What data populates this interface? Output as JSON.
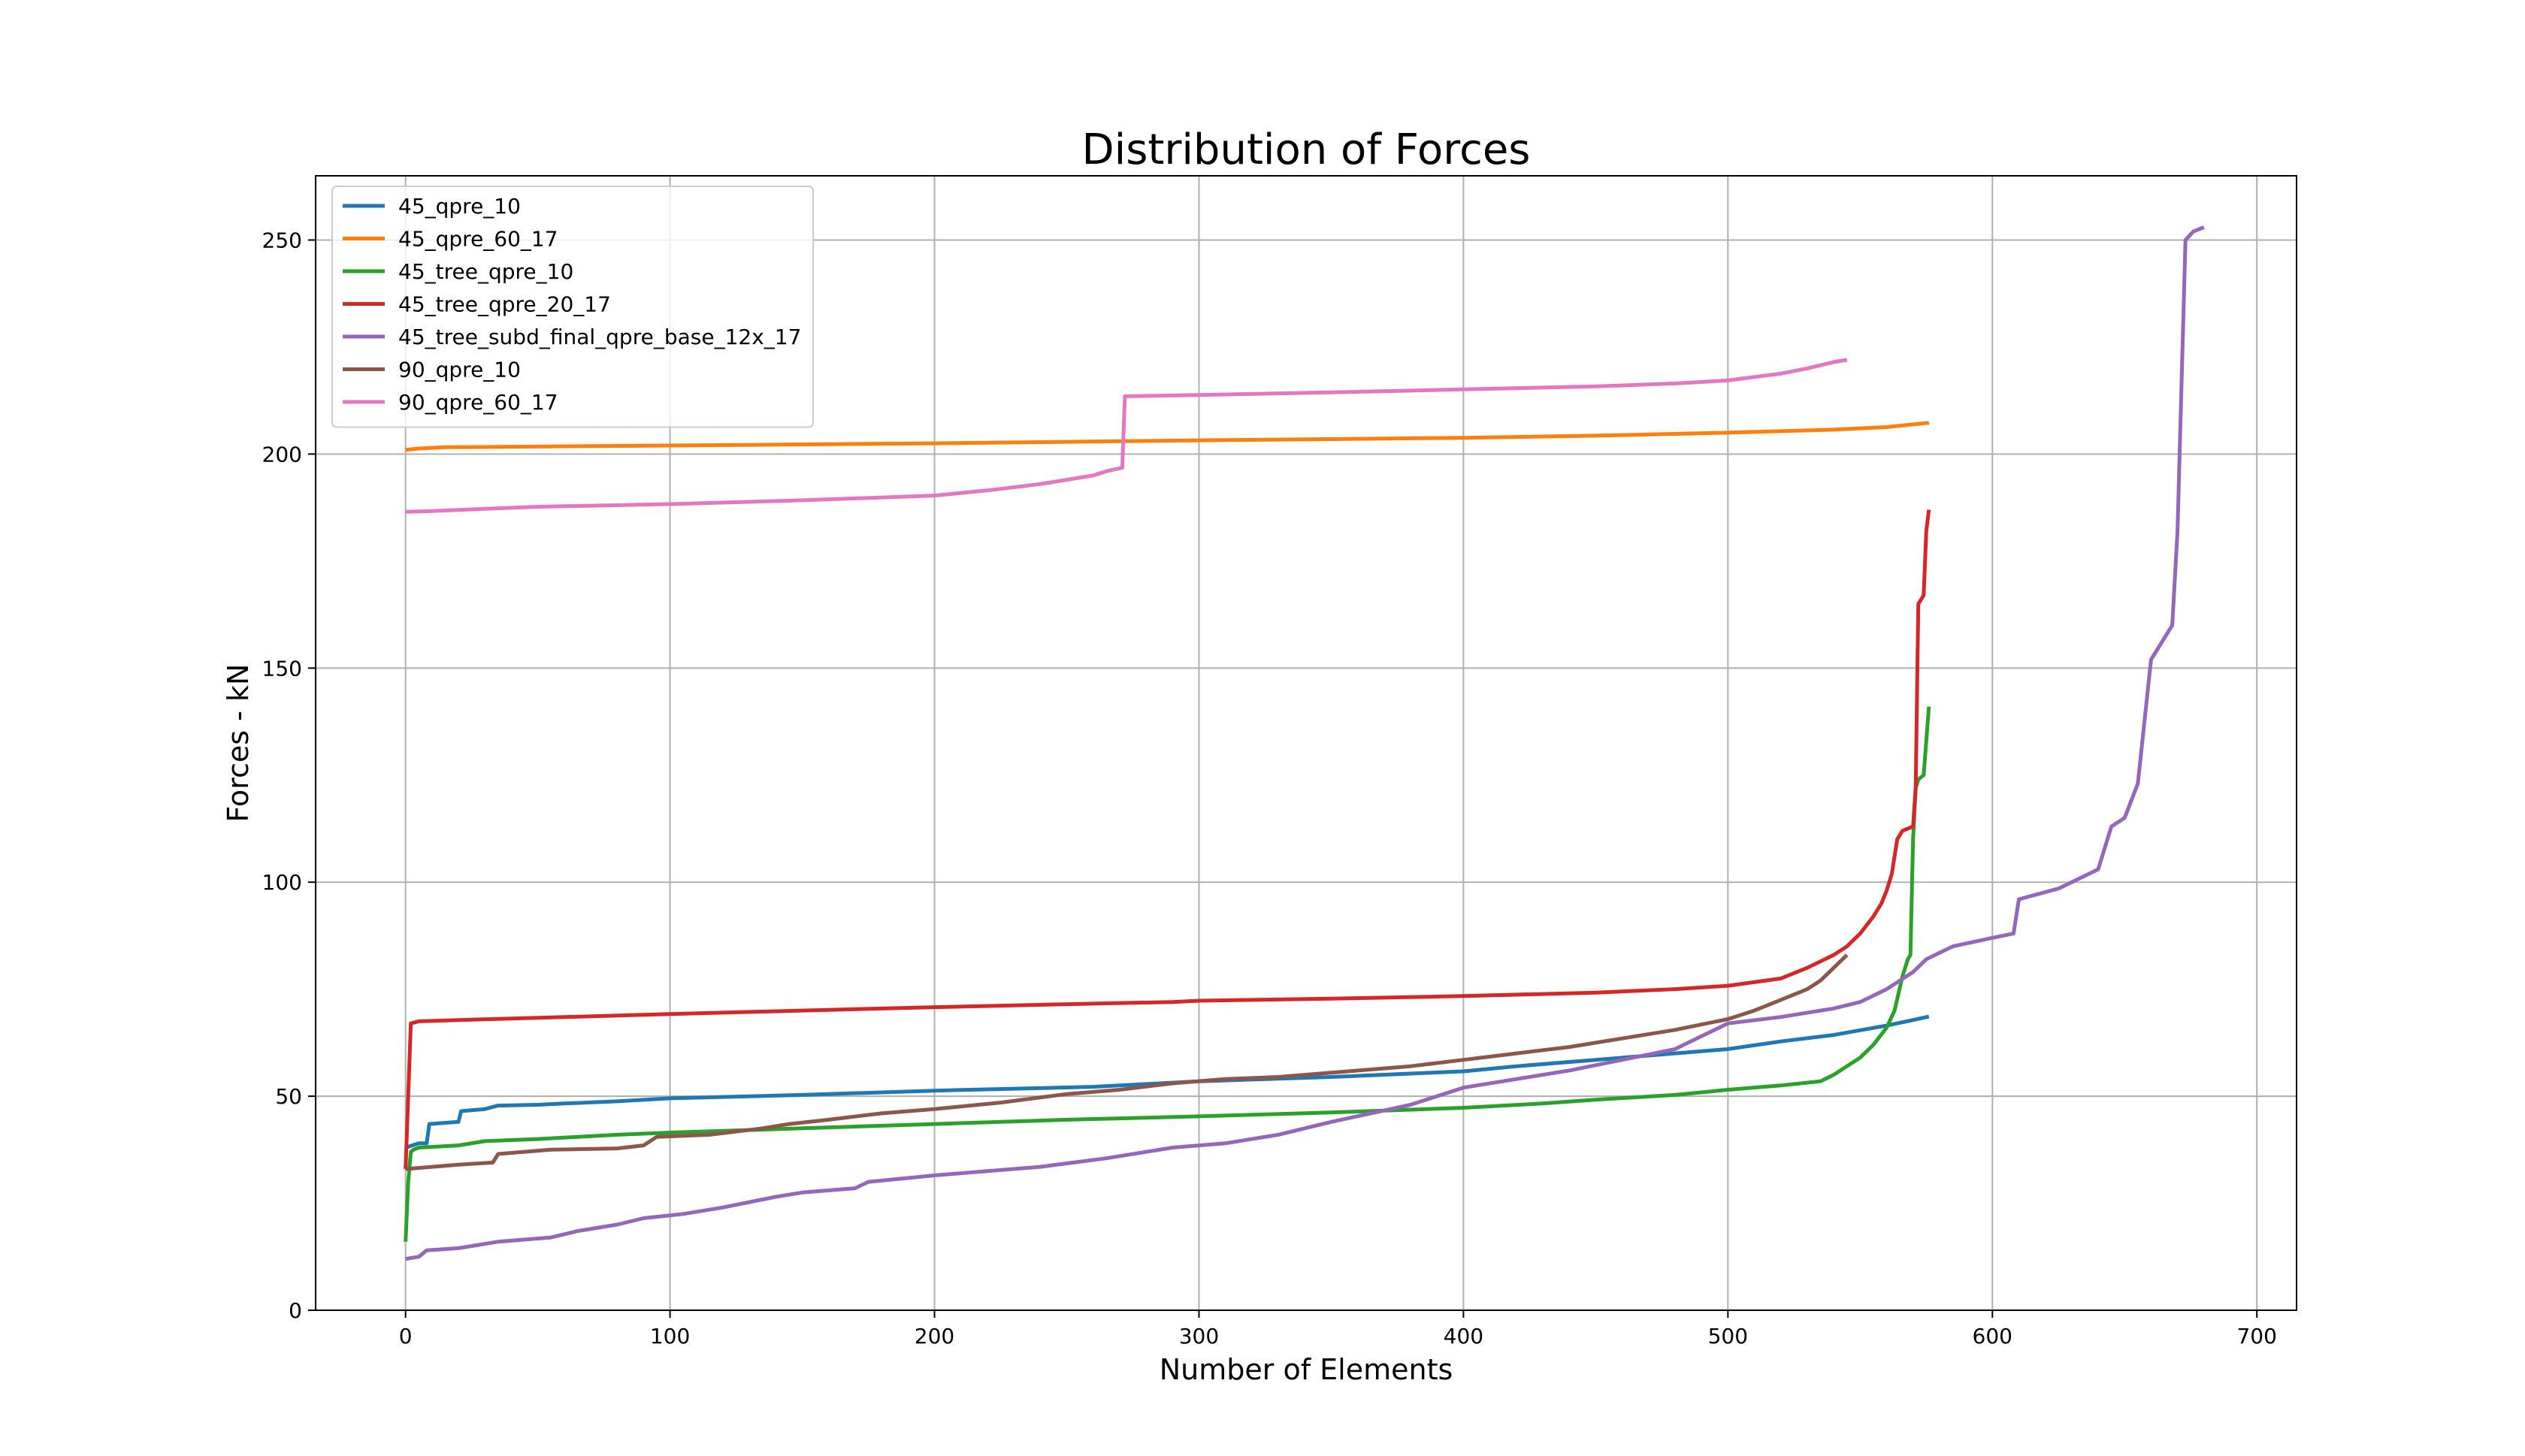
{
  "chart_data": {
    "type": "line",
    "title": "Distribution of Forces",
    "xlabel": "Number of Elements",
    "ylabel": "Forces - kN",
    "xlim": [
      -34,
      715
    ],
    "ylim": [
      0,
      265
    ],
    "xticks": [
      0,
      100,
      200,
      300,
      400,
      500,
      600,
      700
    ],
    "yticks": [
      0,
      50,
      100,
      150,
      200,
      250
    ],
    "grid": true,
    "legend_position": "upper-left",
    "series": [
      {
        "name": "45_qpre_10",
        "color": "#1f77b4",
        "points": [
          [
            0,
            38
          ],
          [
            5,
            39
          ],
          [
            8,
            39
          ],
          [
            9,
            43.5
          ],
          [
            20,
            44
          ],
          [
            21,
            46.5
          ],
          [
            30,
            47
          ],
          [
            35,
            47.8
          ],
          [
            50,
            48
          ],
          [
            60,
            48.3
          ],
          [
            80,
            48.8
          ],
          [
            100,
            49.5
          ],
          [
            150,
            50.3
          ],
          [
            200,
            51.3
          ],
          [
            260,
            52.2
          ],
          [
            300,
            53.5
          ],
          [
            350,
            54.5
          ],
          [
            400,
            55.8
          ],
          [
            420,
            57
          ],
          [
            450,
            58.5
          ],
          [
            480,
            60
          ],
          [
            500,
            61
          ],
          [
            520,
            62.8
          ],
          [
            540,
            64.3
          ],
          [
            560,
            66.5
          ],
          [
            570,
            67.8
          ],
          [
            576,
            68.6
          ]
        ]
      },
      {
        "name": "45_qpre_60_17",
        "color": "#ff7f0e",
        "points": [
          [
            0,
            201
          ],
          [
            5,
            201.3
          ],
          [
            15,
            201.6
          ],
          [
            100,
            202
          ],
          [
            200,
            202.5
          ],
          [
            300,
            203.2
          ],
          [
            400,
            203.8
          ],
          [
            450,
            204.3
          ],
          [
            500,
            205
          ],
          [
            540,
            205.7
          ],
          [
            560,
            206.3
          ],
          [
            576,
            207.3
          ]
        ]
      },
      {
        "name": "45_tree_qpre_10",
        "color": "#2ca02c",
        "points": [
          [
            0,
            16
          ],
          [
            1,
            30
          ],
          [
            2,
            37
          ],
          [
            3,
            37.5
          ],
          [
            5,
            38
          ],
          [
            20,
            38.5
          ],
          [
            30,
            39.5
          ],
          [
            50,
            40
          ],
          [
            80,
            41
          ],
          [
            100,
            41.5
          ],
          [
            150,
            42.5
          ],
          [
            200,
            43.5
          ],
          [
            250,
            44.5
          ],
          [
            300,
            45.3
          ],
          [
            350,
            46.2
          ],
          [
            400,
            47.3
          ],
          [
            430,
            48.3
          ],
          [
            450,
            49.2
          ],
          [
            480,
            50.3
          ],
          [
            500,
            51.5
          ],
          [
            520,
            52.5
          ],
          [
            535,
            53.5
          ],
          [
            540,
            55
          ],
          [
            545,
            57
          ],
          [
            550,
            59
          ],
          [
            555,
            62
          ],
          [
            560,
            66
          ],
          [
            563,
            70
          ],
          [
            566,
            78
          ],
          [
            568,
            82
          ],
          [
            569,
            83
          ],
          [
            570,
            110
          ],
          [
            571,
            122
          ],
          [
            572,
            124
          ],
          [
            574,
            125
          ],
          [
            576,
            141
          ]
        ]
      },
      {
        "name": "45_tree_qpre_20_17",
        "color": "#d62728",
        "points": [
          [
            0,
            33
          ],
          [
            2,
            67
          ],
          [
            5,
            67.5
          ],
          [
            20,
            67.8
          ],
          [
            50,
            68.3
          ],
          [
            100,
            69.2
          ],
          [
            150,
            70
          ],
          [
            200,
            70.8
          ],
          [
            250,
            71.5
          ],
          [
            290,
            72
          ],
          [
            300,
            72.3
          ],
          [
            350,
            72.8
          ],
          [
            400,
            73.4
          ],
          [
            450,
            74.2
          ],
          [
            480,
            75
          ],
          [
            500,
            75.8
          ],
          [
            520,
            77.5
          ],
          [
            530,
            80
          ],
          [
            540,
            83
          ],
          [
            545,
            85
          ],
          [
            550,
            88
          ],
          [
            555,
            92
          ],
          [
            558,
            95
          ],
          [
            560,
            98
          ],
          [
            562,
            102
          ],
          [
            564,
            110
          ],
          [
            566,
            112
          ],
          [
            570,
            113
          ],
          [
            571,
            122
          ],
          [
            572,
            165
          ],
          [
            573,
            166
          ],
          [
            574,
            167
          ],
          [
            575,
            182
          ],
          [
            576,
            187
          ]
        ]
      },
      {
        "name": "45_tree_subd_final_qpre_base_12x_17",
        "color": "#9467bd",
        "points": [
          [
            0,
            12
          ],
          [
            5,
            12.5
          ],
          [
            8,
            14
          ],
          [
            20,
            14.5
          ],
          [
            35,
            16
          ],
          [
            55,
            17
          ],
          [
            65,
            18.5
          ],
          [
            80,
            20
          ],
          [
            90,
            21.5
          ],
          [
            105,
            22.5
          ],
          [
            120,
            24
          ],
          [
            140,
            26.5
          ],
          [
            150,
            27.5
          ],
          [
            170,
            28.5
          ],
          [
            175,
            30
          ],
          [
            200,
            31.5
          ],
          [
            220,
            32.5
          ],
          [
            240,
            33.5
          ],
          [
            265,
            35.5
          ],
          [
            280,
            37
          ],
          [
            290,
            38
          ],
          [
            310,
            39
          ],
          [
            330,
            41
          ],
          [
            350,
            44
          ],
          [
            365,
            46
          ],
          [
            380,
            48
          ],
          [
            390,
            50
          ],
          [
            400,
            52
          ],
          [
            420,
            54
          ],
          [
            440,
            56
          ],
          [
            460,
            58.5
          ],
          [
            480,
            61
          ],
          [
            490,
            64
          ],
          [
            500,
            67
          ],
          [
            520,
            68.5
          ],
          [
            540,
            70.5
          ],
          [
            550,
            72
          ],
          [
            560,
            75
          ],
          [
            565,
            77
          ],
          [
            570,
            79
          ],
          [
            575,
            82
          ],
          [
            585,
            85
          ],
          [
            600,
            87
          ],
          [
            608,
            88
          ],
          [
            610,
            96
          ],
          [
            625,
            98.5
          ],
          [
            640,
            103
          ],
          [
            645,
            113
          ],
          [
            650,
            115
          ],
          [
            655,
            123
          ],
          [
            660,
            152
          ],
          [
            665,
            157
          ],
          [
            668,
            160
          ],
          [
            670,
            182
          ],
          [
            673,
            250
          ],
          [
            676,
            252
          ],
          [
            680,
            253
          ]
        ]
      },
      {
        "name": "90_qpre_10",
        "color": "#8c564b",
        "points": [
          [
            0,
            33
          ],
          [
            10,
            33.5
          ],
          [
            20,
            34
          ],
          [
            33,
            34.5
          ],
          [
            35,
            36.5
          ],
          [
            55,
            37.5
          ],
          [
            80,
            37.8
          ],
          [
            90,
            38.5
          ],
          [
            95,
            40.5
          ],
          [
            115,
            41
          ],
          [
            135,
            42.5
          ],
          [
            145,
            43.5
          ],
          [
            160,
            44.5
          ],
          [
            180,
            46
          ],
          [
            200,
            47
          ],
          [
            225,
            48.5
          ],
          [
            250,
            50.5
          ],
          [
            270,
            51.5
          ],
          [
            290,
            53
          ],
          [
            310,
            54
          ],
          [
            330,
            54.5
          ],
          [
            350,
            55.5
          ],
          [
            380,
            57
          ],
          [
            400,
            58.5
          ],
          [
            420,
            60
          ],
          [
            440,
            61.5
          ],
          [
            460,
            63.5
          ],
          [
            480,
            65.5
          ],
          [
            500,
            68
          ],
          [
            510,
            70
          ],
          [
            520,
            72.5
          ],
          [
            530,
            75
          ],
          [
            535,
            77
          ],
          [
            540,
            80
          ],
          [
            545,
            83
          ]
        ]
      },
      {
        "name": "90_qpre_60_17",
        "color": "#e377c2",
        "points": [
          [
            0,
            186.5
          ],
          [
            10,
            186.7
          ],
          [
            30,
            187.2
          ],
          [
            50,
            187.7
          ],
          [
            100,
            188.3
          ],
          [
            150,
            189.2
          ],
          [
            200,
            190.3
          ],
          [
            220,
            191.5
          ],
          [
            240,
            193
          ],
          [
            250,
            194
          ],
          [
            260,
            195
          ],
          [
            265,
            196
          ],
          [
            271,
            196.8
          ],
          [
            272,
            213.5
          ],
          [
            300,
            213.8
          ],
          [
            350,
            214.4
          ],
          [
            400,
            215.1
          ],
          [
            450,
            215.8
          ],
          [
            480,
            216.5
          ],
          [
            500,
            217.2
          ],
          [
            510,
            218
          ],
          [
            520,
            218.8
          ],
          [
            530,
            220
          ],
          [
            540,
            221.5
          ],
          [
            545,
            222
          ]
        ]
      }
    ]
  }
}
